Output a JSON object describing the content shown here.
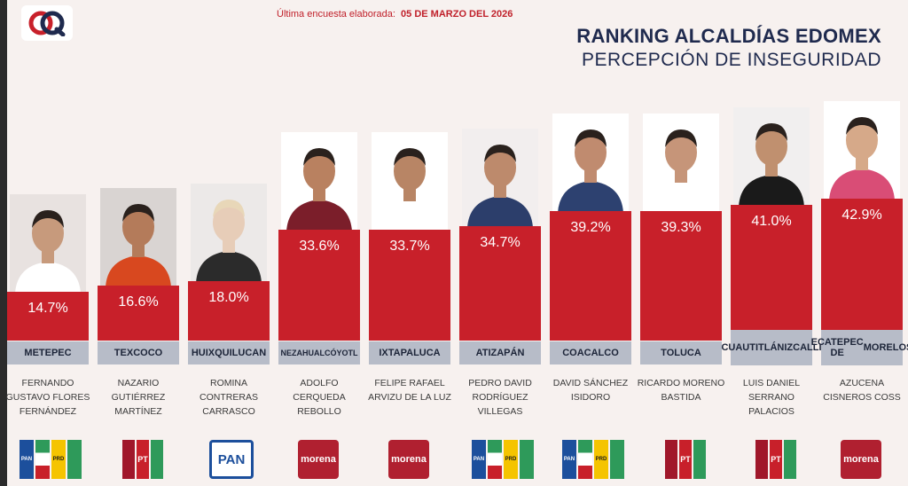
{
  "header": {
    "survey_label": "Última encuesta elaborada:",
    "survey_date": "05 DE MARZO DEL 2026",
    "title": "RANKING ALCALDÍAS EDOMEX",
    "subtitle": "PERCEPCIÓN DE INSEGURIDAD"
  },
  "colors": {
    "bar": "#c8202a",
    "city_box": "#b7bcc8",
    "title": "#1f2a4e",
    "background": "#f7f1ef"
  },
  "chart_data": {
    "type": "bar",
    "title": "RANKING ALCALDÍAS EDOMEX",
    "subtitle": "PERCEPCIÓN DE INSEGURIDAD",
    "categories": [
      "METEPEC",
      "TEXCOCO",
      "HUIXQUILUCAN",
      "NEZAHUALCÓYOTL",
      "IXTAPALUCA",
      "ATIZAPÁN",
      "COACALCO",
      "TOLUCA",
      "CUAUTITLÁN IZCALLI",
      "ECATEPEC DE MORELOS"
    ],
    "values": [
      14.7,
      16.6,
      18.0,
      33.6,
      33.7,
      34.7,
      39.2,
      39.3,
      41.0,
      42.9
    ],
    "value_labels": [
      "14.7%",
      "16.6%",
      "18.0%",
      "33.6%",
      "33.7%",
      "34.7%",
      "39.2%",
      "39.3%",
      "41.0%",
      "42.9%"
    ],
    "unit": "%",
    "grid": false,
    "legend": "none"
  },
  "candidates": [
    {
      "city": "METEPEC",
      "name_lines": [
        "FERNANDO",
        "GUSTAVO FLORES",
        "FERNÁNDEZ"
      ],
      "party": [
        "PRI-PAN-PRD alliance"
      ]
    },
    {
      "city": "TEXCOCO",
      "name_lines": [
        "NAZARIO",
        "GUTIÉRREZ",
        "MARTÍNEZ"
      ],
      "party": [
        "Morena-PT-PVEM alliance"
      ]
    },
    {
      "city": "HUIXQUILUCAN",
      "name_lines": [
        "ROMINA",
        "CONTRERAS",
        "CARRASCO"
      ],
      "party": [
        "PAN"
      ]
    },
    {
      "city": "NEZAHUALCÓYOTL",
      "name_lines": [
        "ADOLFO",
        "CERQUEDA",
        "REBOLLO"
      ],
      "party": [
        "morena"
      ]
    },
    {
      "city": "IXTAPALUCA",
      "name_lines": [
        "FELIPE RAFAEL",
        "ARVIZU DE LA LUZ"
      ],
      "party": [
        "morena"
      ]
    },
    {
      "city": "ATIZAPÁN",
      "name_lines": [
        "PEDRO DAVID",
        "RODRÍGUEZ",
        "VILLEGAS"
      ],
      "party": [
        "PRI-PAN-PRD alliance"
      ]
    },
    {
      "city": "COACALCO",
      "name_lines": [
        "DAVID SÁNCHEZ",
        "ISIDORO"
      ],
      "party": [
        "PRI-PAN-PRD alliance"
      ]
    },
    {
      "city": "TOLUCA",
      "name_lines": [
        "RICARDO MORENO",
        "BASTIDA"
      ],
      "party": [
        "Morena-PT-PVEM alliance"
      ]
    },
    {
      "city": "CUAUTITLÁN IZCALLI",
      "name_lines": [
        "LUIS DANIEL",
        "SERRANO",
        "PALACIOS"
      ],
      "party": [
        "Morena-PT-PVEM alliance"
      ]
    },
    {
      "city": "ECATEPEC DE MORELOS",
      "name_lines": [
        "AZUCENA",
        "CISNEROS COSS"
      ],
      "party": [
        "morena"
      ]
    }
  ],
  "party_text": {
    "pan": "PAN",
    "pt": "PT",
    "morena": "morena",
    "pri": "PRI",
    "prd": "PRD"
  }
}
